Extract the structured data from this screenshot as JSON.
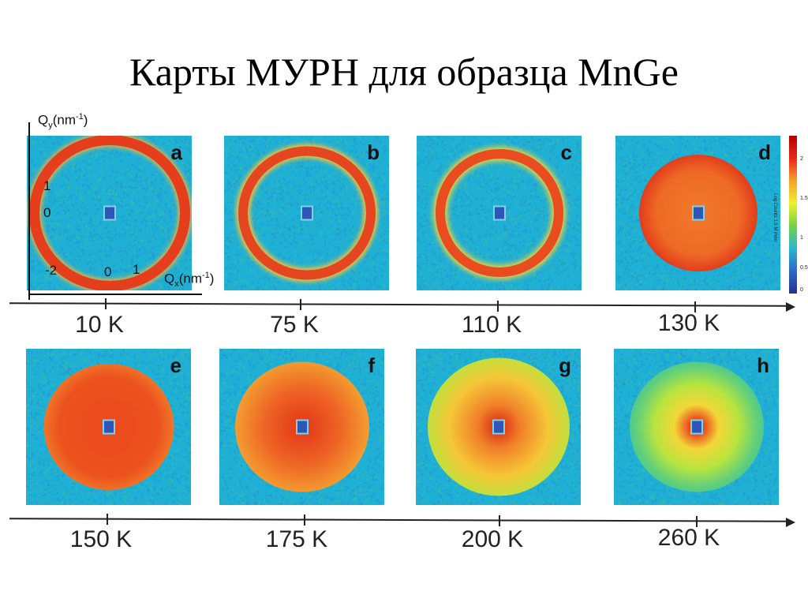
{
  "title": "Карты МУРН для образца MnGe",
  "axes": {
    "qy_label": "Q",
    "qy_sub": "y",
    "qy_unit_prefix": "(nm",
    "qy_sup": "-1",
    "qy_unit_suffix": ")",
    "qx_label": "Q",
    "qx_sub": "x",
    "qx_unit_prefix": "(nm",
    "qx_sup": "-1",
    "qx_unit_suffix": ")",
    "y_tick_top": "1",
    "y_tick_mid": "0",
    "x_tick_left": "-2",
    "x_tick_mid": "0",
    "x_tick_right": "1"
  },
  "panels_row1": [
    {
      "letter": "a",
      "temperature": "10 K"
    },
    {
      "letter": "b",
      "temperature": "75 K"
    },
    {
      "letter": "c",
      "temperature": "110 K"
    },
    {
      "letter": "d",
      "temperature": "130 K"
    }
  ],
  "panels_row2": [
    {
      "letter": "e",
      "temperature": "150 K"
    },
    {
      "letter": "f",
      "temperature": "175 K"
    },
    {
      "letter": "g",
      "temperature": "200 K"
    },
    {
      "letter": "h",
      "temperature": "260 K"
    }
  ],
  "colorbar": {
    "label": "Log  Counts 1.5 M mon",
    "tick_top": "2",
    "tick_mid": "1.5",
    "tick_low": "1",
    "tick_lower": "0.5",
    "tick_bottom": "0",
    "colors": [
      "#b30000",
      "#e8261a",
      "#f4a22a",
      "#f1ef2e",
      "#76d04a",
      "#29b7d0",
      "#2f67c8",
      "#20318f"
    ]
  }
}
